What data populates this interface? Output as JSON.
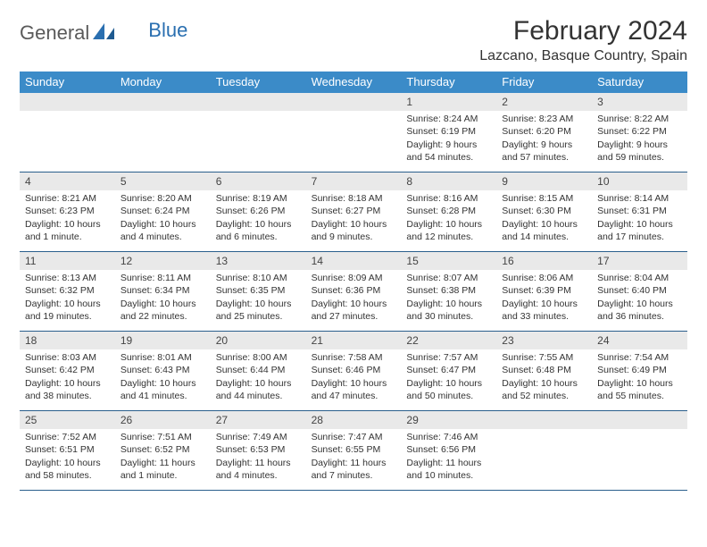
{
  "logo": {
    "part1": "General",
    "part2": "Blue"
  },
  "title": "February 2024",
  "location": "Lazcano, Basque Country, Spain",
  "colors": {
    "header_bg": "#3b8bc8",
    "header_text": "#ffffff",
    "band_bg": "#e9e9e9",
    "row_border": "#2a5f8c",
    "logo_gray": "#5a5a5a",
    "logo_blue": "#2a6fb0"
  },
  "day_names": [
    "Sunday",
    "Monday",
    "Tuesday",
    "Wednesday",
    "Thursday",
    "Friday",
    "Saturday"
  ],
  "weeks": [
    [
      {
        "num": "",
        "sunrise": "",
        "sunset": "",
        "daylight1": "",
        "daylight2": ""
      },
      {
        "num": "",
        "sunrise": "",
        "sunset": "",
        "daylight1": "",
        "daylight2": ""
      },
      {
        "num": "",
        "sunrise": "",
        "sunset": "",
        "daylight1": "",
        "daylight2": ""
      },
      {
        "num": "",
        "sunrise": "",
        "sunset": "",
        "daylight1": "",
        "daylight2": ""
      },
      {
        "num": "1",
        "sunrise": "Sunrise: 8:24 AM",
        "sunset": "Sunset: 6:19 PM",
        "daylight1": "Daylight: 9 hours",
        "daylight2": "and 54 minutes."
      },
      {
        "num": "2",
        "sunrise": "Sunrise: 8:23 AM",
        "sunset": "Sunset: 6:20 PM",
        "daylight1": "Daylight: 9 hours",
        "daylight2": "and 57 minutes."
      },
      {
        "num": "3",
        "sunrise": "Sunrise: 8:22 AM",
        "sunset": "Sunset: 6:22 PM",
        "daylight1": "Daylight: 9 hours",
        "daylight2": "and 59 minutes."
      }
    ],
    [
      {
        "num": "4",
        "sunrise": "Sunrise: 8:21 AM",
        "sunset": "Sunset: 6:23 PM",
        "daylight1": "Daylight: 10 hours",
        "daylight2": "and 1 minute."
      },
      {
        "num": "5",
        "sunrise": "Sunrise: 8:20 AM",
        "sunset": "Sunset: 6:24 PM",
        "daylight1": "Daylight: 10 hours",
        "daylight2": "and 4 minutes."
      },
      {
        "num": "6",
        "sunrise": "Sunrise: 8:19 AM",
        "sunset": "Sunset: 6:26 PM",
        "daylight1": "Daylight: 10 hours",
        "daylight2": "and 6 minutes."
      },
      {
        "num": "7",
        "sunrise": "Sunrise: 8:18 AM",
        "sunset": "Sunset: 6:27 PM",
        "daylight1": "Daylight: 10 hours",
        "daylight2": "and 9 minutes."
      },
      {
        "num": "8",
        "sunrise": "Sunrise: 8:16 AM",
        "sunset": "Sunset: 6:28 PM",
        "daylight1": "Daylight: 10 hours",
        "daylight2": "and 12 minutes."
      },
      {
        "num": "9",
        "sunrise": "Sunrise: 8:15 AM",
        "sunset": "Sunset: 6:30 PM",
        "daylight1": "Daylight: 10 hours",
        "daylight2": "and 14 minutes."
      },
      {
        "num": "10",
        "sunrise": "Sunrise: 8:14 AM",
        "sunset": "Sunset: 6:31 PM",
        "daylight1": "Daylight: 10 hours",
        "daylight2": "and 17 minutes."
      }
    ],
    [
      {
        "num": "11",
        "sunrise": "Sunrise: 8:13 AM",
        "sunset": "Sunset: 6:32 PM",
        "daylight1": "Daylight: 10 hours",
        "daylight2": "and 19 minutes."
      },
      {
        "num": "12",
        "sunrise": "Sunrise: 8:11 AM",
        "sunset": "Sunset: 6:34 PM",
        "daylight1": "Daylight: 10 hours",
        "daylight2": "and 22 minutes."
      },
      {
        "num": "13",
        "sunrise": "Sunrise: 8:10 AM",
        "sunset": "Sunset: 6:35 PM",
        "daylight1": "Daylight: 10 hours",
        "daylight2": "and 25 minutes."
      },
      {
        "num": "14",
        "sunrise": "Sunrise: 8:09 AM",
        "sunset": "Sunset: 6:36 PM",
        "daylight1": "Daylight: 10 hours",
        "daylight2": "and 27 minutes."
      },
      {
        "num": "15",
        "sunrise": "Sunrise: 8:07 AM",
        "sunset": "Sunset: 6:38 PM",
        "daylight1": "Daylight: 10 hours",
        "daylight2": "and 30 minutes."
      },
      {
        "num": "16",
        "sunrise": "Sunrise: 8:06 AM",
        "sunset": "Sunset: 6:39 PM",
        "daylight1": "Daylight: 10 hours",
        "daylight2": "and 33 minutes."
      },
      {
        "num": "17",
        "sunrise": "Sunrise: 8:04 AM",
        "sunset": "Sunset: 6:40 PM",
        "daylight1": "Daylight: 10 hours",
        "daylight2": "and 36 minutes."
      }
    ],
    [
      {
        "num": "18",
        "sunrise": "Sunrise: 8:03 AM",
        "sunset": "Sunset: 6:42 PM",
        "daylight1": "Daylight: 10 hours",
        "daylight2": "and 38 minutes."
      },
      {
        "num": "19",
        "sunrise": "Sunrise: 8:01 AM",
        "sunset": "Sunset: 6:43 PM",
        "daylight1": "Daylight: 10 hours",
        "daylight2": "and 41 minutes."
      },
      {
        "num": "20",
        "sunrise": "Sunrise: 8:00 AM",
        "sunset": "Sunset: 6:44 PM",
        "daylight1": "Daylight: 10 hours",
        "daylight2": "and 44 minutes."
      },
      {
        "num": "21",
        "sunrise": "Sunrise: 7:58 AM",
        "sunset": "Sunset: 6:46 PM",
        "daylight1": "Daylight: 10 hours",
        "daylight2": "and 47 minutes."
      },
      {
        "num": "22",
        "sunrise": "Sunrise: 7:57 AM",
        "sunset": "Sunset: 6:47 PM",
        "daylight1": "Daylight: 10 hours",
        "daylight2": "and 50 minutes."
      },
      {
        "num": "23",
        "sunrise": "Sunrise: 7:55 AM",
        "sunset": "Sunset: 6:48 PM",
        "daylight1": "Daylight: 10 hours",
        "daylight2": "and 52 minutes."
      },
      {
        "num": "24",
        "sunrise": "Sunrise: 7:54 AM",
        "sunset": "Sunset: 6:49 PM",
        "daylight1": "Daylight: 10 hours",
        "daylight2": "and 55 minutes."
      }
    ],
    [
      {
        "num": "25",
        "sunrise": "Sunrise: 7:52 AM",
        "sunset": "Sunset: 6:51 PM",
        "daylight1": "Daylight: 10 hours",
        "daylight2": "and 58 minutes."
      },
      {
        "num": "26",
        "sunrise": "Sunrise: 7:51 AM",
        "sunset": "Sunset: 6:52 PM",
        "daylight1": "Daylight: 11 hours",
        "daylight2": "and 1 minute."
      },
      {
        "num": "27",
        "sunrise": "Sunrise: 7:49 AM",
        "sunset": "Sunset: 6:53 PM",
        "daylight1": "Daylight: 11 hours",
        "daylight2": "and 4 minutes."
      },
      {
        "num": "28",
        "sunrise": "Sunrise: 7:47 AM",
        "sunset": "Sunset: 6:55 PM",
        "daylight1": "Daylight: 11 hours",
        "daylight2": "and 7 minutes."
      },
      {
        "num": "29",
        "sunrise": "Sunrise: 7:46 AM",
        "sunset": "Sunset: 6:56 PM",
        "daylight1": "Daylight: 11 hours",
        "daylight2": "and 10 minutes."
      },
      {
        "num": "",
        "sunrise": "",
        "sunset": "",
        "daylight1": "",
        "daylight2": ""
      },
      {
        "num": "",
        "sunrise": "",
        "sunset": "",
        "daylight1": "",
        "daylight2": ""
      }
    ]
  ]
}
